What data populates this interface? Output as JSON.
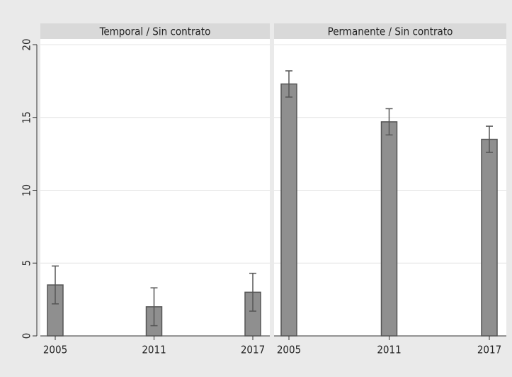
{
  "chart_data": {
    "type": "bar",
    "categories": [
      "2005",
      "2011",
      "2017"
    ],
    "color": "#8f8f8f",
    "ylim": [
      0,
      20
    ],
    "yticks": [
      0,
      5,
      10,
      15,
      20
    ],
    "grid": true,
    "series": [
      {
        "name": "Temporal / Sin contrato",
        "values": [
          3.5,
          2.0,
          3.0
        ],
        "errors": [
          1.3,
          1.3,
          1.3
        ]
      },
      {
        "name": "Permanente / Sin contrato",
        "values": [
          17.3,
          14.7,
          13.5
        ],
        "errors": [
          0.9,
          0.9,
          0.9
        ]
      }
    ]
  }
}
